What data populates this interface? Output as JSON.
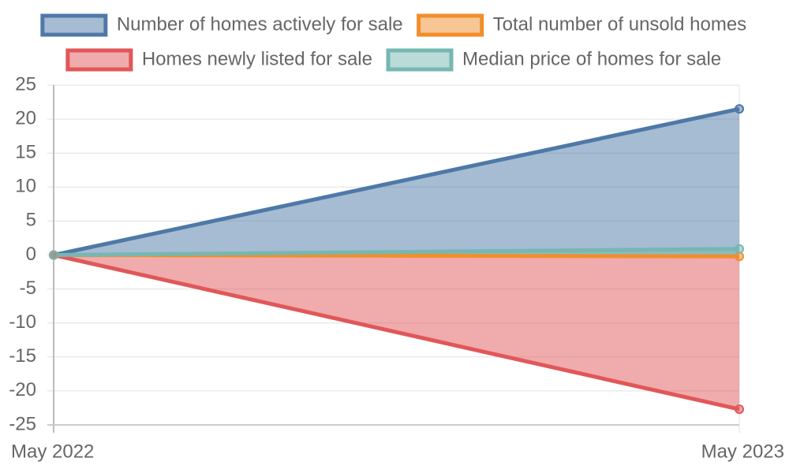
{
  "chart_data": {
    "type": "line",
    "categories": [
      "May 2022",
      "May 2023"
    ],
    "series": [
      {
        "name": "Number of homes actively for sale",
        "color": "#4e79a7",
        "values": [
          0,
          21.5
        ]
      },
      {
        "name": "Total number of unsold homes",
        "color": "#f28e2b",
        "values": [
          0,
          -0.2
        ]
      },
      {
        "name": "Homes newly listed for sale",
        "color": "#e15759",
        "values": [
          0,
          -22.7
        ]
      },
      {
        "name": "Median price of homes for sale",
        "color": "#76b7b2",
        "values": [
          0,
          0.9
        ]
      }
    ],
    "fill": true,
    "ylim": [
      -25,
      25
    ],
    "yticks": [
      -25,
      -20,
      -15,
      -10,
      -5,
      0,
      5,
      10,
      15,
      20,
      25
    ],
    "grid": true,
    "legend": "top"
  }
}
